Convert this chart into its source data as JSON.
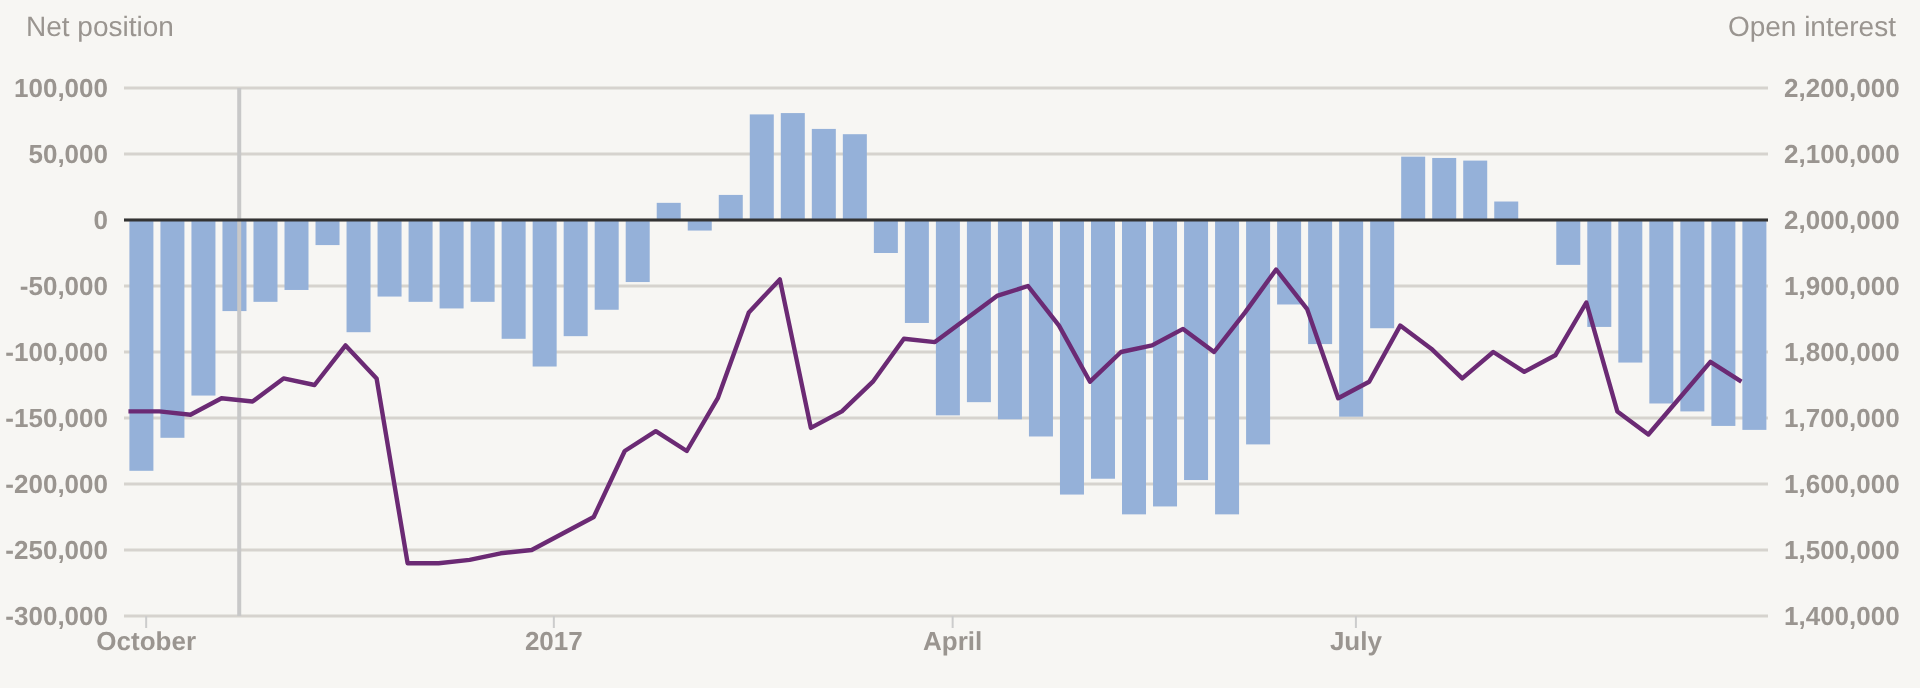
{
  "chart_data": {
    "type": "bar",
    "ylabel": "Net position",
    "y2label": "Open interest",
    "grid": "y",
    "marker": "none",
    "xlim": [
      "2016-09-26",
      "2017-10-02"
    ],
    "xticks": [
      {
        "value": "2016-10-01",
        "label": "October"
      },
      {
        "value": "2017-01-01",
        "label": "2017"
      },
      {
        "value": "2017-04-01",
        "label": "April"
      },
      {
        "value": "2017-07-01",
        "label": "July"
      }
    ],
    "ylim": [
      -300000,
      100000
    ],
    "yticks": [
      {
        "value": -300000,
        "label": "-300,000"
      },
      {
        "value": -250000,
        "label": "-250,000"
      },
      {
        "value": -200000,
        "label": "-200,000"
      },
      {
        "value": -150000,
        "label": "-150,000"
      },
      {
        "value": -100000,
        "label": "-100,000"
      },
      {
        "value": -50000,
        "label": "-50,000"
      },
      0,
      {
        "value": 50000,
        "label": "50,000"
      },
      {
        "value": 100000,
        "label": "100,000"
      }
    ],
    "y2lim": [
      1400000,
      2200000
    ],
    "y2ticks": [
      {
        "value": 1400000,
        "label": "1,400,000"
      },
      {
        "value": 1500000,
        "label": "1,500,000"
      },
      {
        "value": 1600000,
        "label": "1,600,000"
      },
      {
        "value": 1700000,
        "label": "1,700,000"
      },
      {
        "value": 1800000,
        "label": "1,800,000"
      },
      {
        "value": 1900000,
        "label": "1,900,000"
      },
      {
        "value": 2000000,
        "label": "2,000,000"
      },
      {
        "value": 2100000,
        "label": "2,100,000"
      },
      {
        "value": 2200000,
        "label": "2,200,000"
      }
    ],
    "ref_lines": [
      {
        "axis": "y",
        "value": 0,
        "color": "#333333"
      },
      {
        "axis": "x",
        "value": "2016-10-22",
        "color": "#c8c8c8"
      }
    ],
    "series": [
      {
        "color": "#95b1d9",
        "x": [
          "2016-09-30",
          "2016-10-07",
          "2016-10-14",
          "2016-10-21",
          "2016-10-28",
          "2016-11-04",
          "2016-11-11",
          "2016-11-18",
          "2016-11-25",
          "2016-12-02",
          "2016-12-09",
          "2016-12-16",
          "2016-12-23",
          "2016-12-30",
          "2017-01-06",
          "2017-01-13",
          "2017-01-20",
          "2017-01-27",
          "2017-02-03",
          "2017-02-10",
          "2017-02-17",
          "2017-02-24",
          "2017-03-03",
          "2017-03-10",
          "2017-03-17",
          "2017-03-24",
          "2017-03-31",
          "2017-04-07",
          "2017-04-14",
          "2017-04-21",
          "2017-04-28",
          "2017-05-05",
          "2017-05-12",
          "2017-05-19",
          "2017-05-26",
          "2017-06-02",
          "2017-06-09",
          "2017-06-16",
          "2017-06-23",
          "2017-06-30",
          "2017-07-07",
          "2017-07-14",
          "2017-07-21",
          "2017-07-28",
          "2017-08-04",
          "2017-08-11",
          "2017-08-18",
          "2017-08-25",
          "2017-09-01",
          "2017-09-08",
          "2017-09-15",
          "2017-09-22",
          "2017-09-29"
        ],
        "values": [
          -190000,
          -165000,
          -133000,
          -69000,
          -62000,
          -53000,
          -19000,
          -85000,
          -58000,
          -62000,
          -67000,
          -62000,
          -90000,
          -111000,
          -88000,
          -68000,
          -47000,
          13000,
          -8000,
          19000,
          80000,
          81000,
          69000,
          65000,
          -25000,
          -78000,
          -148000,
          -138000,
          -151000,
          -164000,
          -208000,
          -196000,
          -223000,
          -217000,
          -197000,
          -223000,
          -170000,
          -64000,
          -94000,
          -149000,
          -82000,
          48000,
          47000,
          45000,
          14000,
          null,
          -34000,
          -81000,
          -108000,
          -139000,
          -145000,
          -156000,
          -159000
        ]
      },
      {
        "type": "line",
        "axis": "y2",
        "color": "#6b2a74",
        "x": [
          "2016-09-27",
          "2016-10-04",
          "2016-10-11",
          "2016-10-18",
          "2016-10-25",
          "2016-11-01",
          "2016-11-08",
          "2016-11-15",
          "2016-11-22",
          "2016-11-29",
          "2016-12-06",
          "2016-12-13",
          "2016-12-20",
          "2016-12-27",
          "2017-01-03",
          "2017-01-10",
          "2017-01-17",
          "2017-01-24",
          "2017-01-31",
          "2017-02-07",
          "2017-02-14",
          "2017-02-21",
          "2017-02-28",
          "2017-03-07",
          "2017-03-14",
          "2017-03-21",
          "2017-03-28",
          "2017-04-04",
          "2017-04-11",
          "2017-04-18",
          "2017-04-25",
          "2017-05-02",
          "2017-05-09",
          "2017-05-16",
          "2017-05-23",
          "2017-05-30",
          "2017-06-06",
          "2017-06-13",
          "2017-06-20",
          "2017-06-27",
          "2017-07-04",
          "2017-07-11",
          "2017-07-18",
          "2017-07-25",
          "2017-08-01",
          "2017-08-08",
          "2017-08-15",
          "2017-08-22",
          "2017-08-29",
          "2017-09-05",
          "2017-09-12",
          "2017-09-19",
          "2017-09-26"
        ],
        "values": [
          1710000,
          1710000,
          1705000,
          1730000,
          1725000,
          1760000,
          1750000,
          1810000,
          1760000,
          1480000,
          1480000,
          1485000,
          1495000,
          1500000,
          1525000,
          1550000,
          1650000,
          1680000,
          1650000,
          1730000,
          1860000,
          1910000,
          1685000,
          1710000,
          1755000,
          1820000,
          1815000,
          1850000,
          1885000,
          1900000,
          1840000,
          1755000,
          1800000,
          1810000,
          1835000,
          1800000,
          1860000,
          1925000,
          1865000,
          1730000,
          1755000,
          1840000,
          1805000,
          1760000,
          1800000,
          1770000,
          1795000,
          1875000,
          1710000,
          1675000,
          1730000,
          1785000,
          1755000
        ]
      }
    ]
  }
}
